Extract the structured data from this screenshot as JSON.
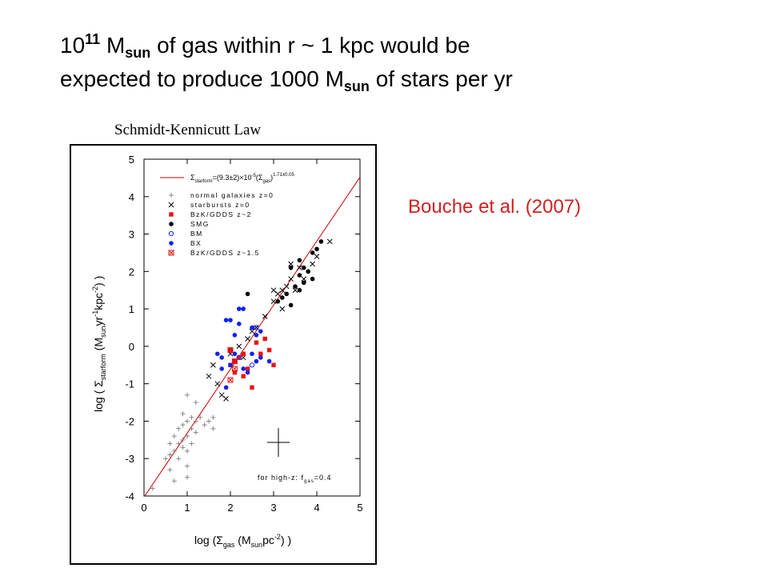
{
  "slide": {
    "title_line1": [
      "10",
      "11",
      " M",
      "sun",
      " of gas within r ~ 1 kpc would be"
    ],
    "title_line2": [
      "expected to produce 1000 M",
      "sun",
      " of stars per yr"
    ],
    "subtitle": "Schmidt-Kennicutt Law",
    "citation": "Bouche et al. (2007)"
  },
  "chart_data": {
    "type": "scatter",
    "xlabel": [
      "log (Σ",
      "gas",
      " (M",
      "sun",
      "pc",
      "-2",
      ") )"
    ],
    "ylabel": [
      "log ( Σ",
      "starform",
      " (M",
      "sun",
      "yr",
      "-1",
      "kpc",
      "-2",
      ") )"
    ],
    "annotation": [
      "for high-z: f",
      "gas",
      "=0.4"
    ],
    "xlim": [
      0,
      5
    ],
    "xticks": [
      0,
      1,
      2,
      3,
      4,
      5
    ],
    "ylim": [
      -4,
      5
    ],
    "yticks": [
      -4,
      -3,
      -2,
      -1,
      0,
      1,
      2,
      3,
      4,
      5
    ],
    "series": [
      {
        "name": [
          "Σ",
          "starform",
          "=(9.3±2)×10",
          "-5",
          "(Σ",
          "gas",
          ")",
          "1.71±0.05"
        ],
        "marker": "line",
        "color": "#cc0000",
        "x": [
          0,
          5
        ],
        "values": [
          -4.03,
          4.52
        ]
      },
      {
        "name": "normal galaxies z=0",
        "marker": "plus",
        "color": "#888888",
        "x": [
          0.2,
          0.6,
          0.6,
          0.6,
          0.7,
          0.7,
          0.8,
          0.8,
          0.8,
          0.9,
          0.9,
          0.9,
          0.9,
          1.0,
          1.0,
          1.0,
          1.0,
          1.1,
          1.1,
          1.1,
          1.2,
          1.2,
          1.3,
          1.4,
          1.5,
          1.6,
          1.0,
          1.2,
          0.5,
          0.7,
          1.0,
          1.6
        ],
        "values": [
          -3.8,
          -3.3,
          -2.9,
          -2.6,
          -2.8,
          -2.4,
          -3.0,
          -2.6,
          -2.2,
          -2.7,
          -2.5,
          -2.1,
          -1.8,
          -2.8,
          -2.4,
          -2.0,
          -3.2,
          -2.2,
          -1.9,
          -2.6,
          -2.0,
          -2.3,
          -1.9,
          -2.1,
          -2.0,
          -2.2,
          -1.3,
          -1.5,
          -3.0,
          -3.6,
          -3.5,
          -1.9
        ]
      },
      {
        "name": "starbursts z=0",
        "marker": "x",
        "color": "#000000",
        "x": [
          1.7,
          1.8,
          1.9,
          1.6,
          2.0,
          2.2,
          2.3,
          2.5,
          2.6,
          2.8,
          3.0,
          3.1,
          3.2,
          3.3,
          3.4,
          3.2,
          3.5,
          3.6,
          3.7,
          3.9,
          4.0,
          4.3,
          3.4,
          3.0,
          2.4,
          1.5
        ],
        "values": [
          -1.0,
          -1.3,
          -1.4,
          -0.5,
          -0.2,
          0.0,
          -0.3,
          0.4,
          0.5,
          0.8,
          1.2,
          1.4,
          1.5,
          1.6,
          1.8,
          1.0,
          1.5,
          2.1,
          1.8,
          2.2,
          2.4,
          2.8,
          2.2,
          1.5,
          0.2,
          -0.8
        ]
      },
      {
        "name": "BzK/GDDS z~2",
        "marker": "square",
        "color": "#ee1111",
        "x": [
          2.0,
          2.0,
          2.1,
          2.2,
          2.3,
          2.4,
          2.5,
          2.7,
          2.9,
          3.0,
          2.6,
          2.8,
          2.1,
          2.3
        ],
        "values": [
          -0.1,
          -0.5,
          -0.7,
          -0.3,
          -0.2,
          -0.6,
          -1.1,
          -0.2,
          -0.1,
          -0.5,
          0.1,
          0.2,
          -0.4,
          -0.8
        ]
      },
      {
        "name": "SMG",
        "marker": "star",
        "color": "#000000",
        "x": [
          2.4,
          3.1,
          3.2,
          3.4,
          3.3,
          3.5,
          3.6,
          3.6,
          3.7,
          3.8,
          3.9,
          3.7,
          4.0,
          3.9,
          4.1,
          3.4,
          3.6
        ],
        "values": [
          1.4,
          1.2,
          1.3,
          1.1,
          1.4,
          1.6,
          1.5,
          1.9,
          1.7,
          2.0,
          1.8,
          2.1,
          2.6,
          2.5,
          2.8,
          2.1,
          2.3
        ]
      },
      {
        "name": "BM",
        "marker": "circle-open",
        "color": "#1122ee",
        "x": [
          2.6,
          2.2,
          2.5
        ],
        "values": [
          0.5,
          -0.3,
          -0.5
        ]
      },
      {
        "name": "BX",
        "marker": "circle",
        "color": "#1122ee",
        "x": [
          1.8,
          1.7,
          1.9,
          2.0,
          2.0,
          2.1,
          2.2,
          2.3,
          2.2,
          2.5,
          2.6,
          2.7,
          2.7,
          2.5,
          2.4,
          2.3,
          1.8,
          2.1,
          2.9,
          2.6,
          1.9
        ],
        "values": [
          -0.3,
          -0.2,
          0.7,
          0.7,
          -0.5,
          0.3,
          0.6,
          1.0,
          1.0,
          0.5,
          0.3,
          0.4,
          -0.3,
          -0.2,
          -0.7,
          -0.6,
          -0.6,
          -0.2,
          -0.4,
          -0.4,
          -1.1
        ]
      },
      {
        "name": "BzK/GDDS z~1.5",
        "marker": "square-x",
        "color": "#dd1111",
        "x": [
          2.0,
          2.1,
          2.0,
          2.1
        ],
        "values": [
          -0.9,
          -0.6,
          -0.1,
          -0.4
        ]
      }
    ]
  }
}
